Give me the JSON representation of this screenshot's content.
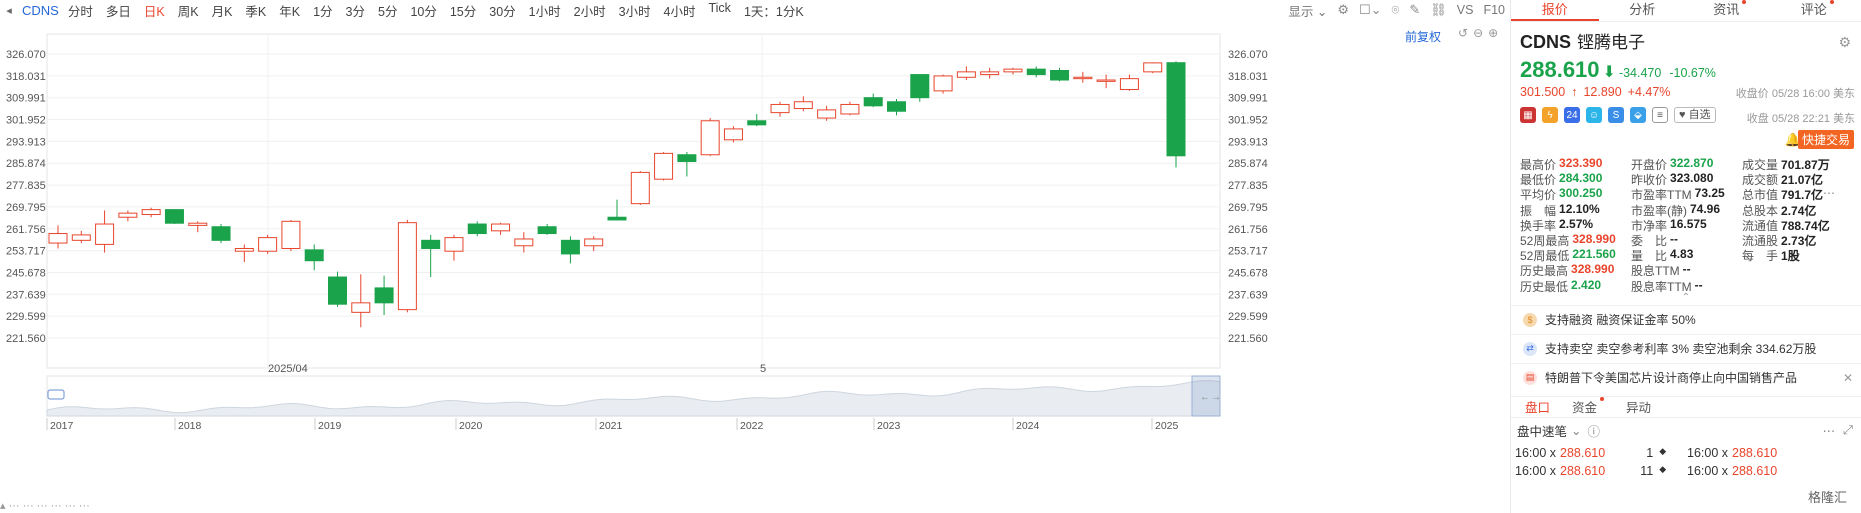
{
  "toolbar": {
    "symbol": "CDNS",
    "periods": [
      "分时",
      "多日",
      "日K",
      "周K",
      "月K",
      "季K",
      "年K",
      "1分",
      "3分",
      "5分",
      "10分",
      "15分",
      "30分",
      "1小时",
      "2小时",
      "3小时",
      "4小时",
      "Tick",
      "1天：1分K"
    ],
    "active_period": "日K",
    "display_label": "显示",
    "vs_label": "VS",
    "f10_label": "F10"
  },
  "chart": {
    "fuquan_label": "前复权",
    "price_ticks": [
      "326.070",
      "318.031",
      "309.991",
      "301.952",
      "293.913",
      "285.874",
      "277.835",
      "269.795",
      "261.756",
      "253.717",
      "245.678",
      "237.639",
      "229.599",
      "221.560"
    ],
    "date_ticks": [
      "2025/04",
      "5"
    ],
    "year_ticks": [
      "2017",
      "2018",
      "2019",
      "2020",
      "2021",
      "2022",
      "2023",
      "2024",
      "2025"
    ],
    "colors": {
      "up": "#e8452c",
      "down": "#1aa34a",
      "grid": "#f0f0f0"
    }
  },
  "chart_data": {
    "type": "candlestick",
    "ylim": [
      221.56,
      326.07
    ],
    "candles": [
      {
        "o": 256.5,
        "h": 263.0,
        "l": 254.5,
        "c": 260.0
      },
      {
        "o": 257.5,
        "h": 261.0,
        "l": 256.5,
        "c": 259.5
      },
      {
        "o": 256.0,
        "h": 268.5,
        "l": 253.0,
        "c": 263.5
      },
      {
        "o": 266.0,
        "h": 268.5,
        "l": 264.5,
        "c": 267.5
      },
      {
        "o": 267.0,
        "h": 269.5,
        "l": 266.0,
        "c": 268.8
      },
      {
        "o": 268.8,
        "h": 269.0,
        "l": 263.5,
        "c": 263.8
      },
      {
        "o": 263.0,
        "h": 264.5,
        "l": 260.5,
        "c": 263.8
      },
      {
        "o": 262.5,
        "h": 263.5,
        "l": 256.5,
        "c": 257.5
      },
      {
        "o": 253.5,
        "h": 256.0,
        "l": 249.5,
        "c": 254.5
      },
      {
        "o": 253.5,
        "h": 259.5,
        "l": 252.5,
        "c": 258.5
      },
      {
        "o": 254.5,
        "h": 265.0,
        "l": 253.5,
        "c": 264.5
      },
      {
        "o": 254.0,
        "h": 256.0,
        "l": 246.5,
        "c": 250.0
      },
      {
        "o": 244.0,
        "h": 246.0,
        "l": 233.0,
        "c": 234.0
      },
      {
        "o": 231.0,
        "h": 245.0,
        "l": 225.5,
        "c": 234.5
      },
      {
        "o": 240.0,
        "h": 244.5,
        "l": 230.0,
        "c": 234.5
      },
      {
        "o": 232.0,
        "h": 265.0,
        "l": 231.0,
        "c": 264.0
      },
      {
        "o": 257.5,
        "h": 259.5,
        "l": 244.0,
        "c": 254.5
      },
      {
        "o": 253.5,
        "h": 259.5,
        "l": 250.0,
        "c": 258.5
      },
      {
        "o": 263.5,
        "h": 264.5,
        "l": 259.0,
        "c": 260.0
      },
      {
        "o": 261.0,
        "h": 264.0,
        "l": 259.5,
        "c": 263.5
      },
      {
        "o": 255.5,
        "h": 260.5,
        "l": 253.0,
        "c": 258.0
      },
      {
        "o": 262.5,
        "h": 263.5,
        "l": 259.5,
        "c": 260.0
      },
      {
        "o": 257.5,
        "h": 259.0,
        "l": 249.0,
        "c": 252.5
      },
      {
        "o": 255.5,
        "h": 259.0,
        "l": 253.5,
        "c": 258.0
      },
      {
        "o": 266.0,
        "h": 272.5,
        "l": 265.0,
        "c": 265.0
      },
      {
        "o": 271.0,
        "h": 283.0,
        "l": 270.5,
        "c": 282.5
      },
      {
        "o": 280.0,
        "h": 290.0,
        "l": 279.5,
        "c": 289.5
      },
      {
        "o": 289.0,
        "h": 290.0,
        "l": 281.0,
        "c": 286.5
      },
      {
        "o": 289.0,
        "h": 302.5,
        "l": 288.5,
        "c": 301.5
      },
      {
        "o": 294.5,
        "h": 299.5,
        "l": 293.5,
        "c": 298.5
      },
      {
        "o": 301.5,
        "h": 304.0,
        "l": 299.5,
        "c": 300.0
      },
      {
        "o": 304.5,
        "h": 308.5,
        "l": 303.0,
        "c": 307.5
      },
      {
        "o": 306.0,
        "h": 310.5,
        "l": 305.0,
        "c": 308.5
      },
      {
        "o": 302.5,
        "h": 307.0,
        "l": 301.5,
        "c": 305.5
      },
      {
        "o": 304.0,
        "h": 308.5,
        "l": 303.5,
        "c": 307.5
      },
      {
        "o": 310.0,
        "h": 311.5,
        "l": 306.5,
        "c": 307.0
      },
      {
        "o": 308.5,
        "h": 309.5,
        "l": 303.5,
        "c": 305.0
      },
      {
        "o": 318.5,
        "h": 318.5,
        "l": 308.5,
        "c": 310.0
      },
      {
        "o": 312.5,
        "h": 318.5,
        "l": 311.5,
        "c": 318.0
      },
      {
        "o": 317.5,
        "h": 321.5,
        "l": 316.5,
        "c": 319.5
      },
      {
        "o": 318.5,
        "h": 321.0,
        "l": 317.0,
        "c": 319.5
      },
      {
        "o": 319.5,
        "h": 321.0,
        "l": 318.5,
        "c": 320.5
      },
      {
        "o": 320.5,
        "h": 321.5,
        "l": 317.5,
        "c": 318.5
      },
      {
        "o": 320.0,
        "h": 321.0,
        "l": 316.0,
        "c": 316.5
      },
      {
        "o": 317.0,
        "h": 319.5,
        "l": 315.5,
        "c": 317.5
      },
      {
        "o": 316.0,
        "h": 318.5,
        "l": 313.5,
        "c": 316.5
      },
      {
        "o": 313.0,
        "h": 318.5,
        "l": 312.5,
        "c": 317.0
      },
      {
        "o": 319.5,
        "h": 323.0,
        "l": 319.0,
        "c": 322.8
      },
      {
        "o": 322.87,
        "h": 323.39,
        "l": 284.3,
        "c": 288.61
      }
    ]
  },
  "overview": {
    "years": [
      "2017",
      "2018",
      "2019",
      "2020",
      "2021",
      "2022",
      "2023",
      "2024",
      "2025"
    ]
  },
  "panel": {
    "tabs": [
      "报价",
      "分析",
      "资讯",
      "评论"
    ],
    "active_tab": "报价",
    "symbol": "CDNS",
    "name": "铿腾电子",
    "price": "288.610",
    "price_arrow": "⬇",
    "change": "-34.470",
    "change_pct": "-10.67%",
    "close_label": "收盘价 05/28 16:00 美东",
    "ah_price": "301.500",
    "ah_arrow": "↑",
    "ah_change": "12.890",
    "ah_pct": "+4.47%",
    "ah_label": "收盘 05/28 22:21 美东",
    "fav_label": "自选",
    "fast_trade": "快捷交易",
    "stats": [
      [
        [
          "最高价",
          "323.390",
          "up"
        ],
        [
          "开盘价",
          "322.870",
          "down"
        ],
        [
          "成交量",
          "701.87万",
          ""
        ]
      ],
      [
        [
          "最低价",
          "284.300",
          "down"
        ],
        [
          "昨收价",
          "323.080",
          ""
        ],
        [
          "成交额",
          "21.07亿",
          ""
        ]
      ],
      [
        [
          "平均价",
          "300.250",
          "down"
        ],
        [
          "市盈率TTM",
          "73.25",
          ""
        ],
        [
          "总市值",
          "791.7亿",
          ""
        ]
      ],
      [
        [
          "振　幅",
          "12.10%",
          ""
        ],
        [
          "市盈率(静)",
          "74.96",
          ""
        ],
        [
          "总股本",
          "2.74亿",
          ""
        ]
      ],
      [
        [
          "换手率",
          "2.57%",
          ""
        ],
        [
          "市净率",
          "16.575",
          ""
        ],
        [
          "流通值",
          "788.74亿",
          ""
        ]
      ],
      [
        [
          "52周最高",
          "328.990",
          "up"
        ],
        [
          "委　比",
          "--",
          ""
        ],
        [
          "流通股",
          "2.73亿",
          ""
        ]
      ],
      [
        [
          "52周最低",
          "221.560",
          "down"
        ],
        [
          "量　比",
          "4.83",
          ""
        ],
        [
          "每　手",
          "1股",
          ""
        ]
      ],
      [
        [
          "历史最高",
          "328.990",
          "up"
        ],
        [
          "股息TTM",
          "--",
          ""
        ],
        [
          "",
          "",
          ""
        ]
      ],
      [
        [
          "历史最低",
          "2.420",
          "down"
        ],
        [
          "股息率TTM",
          "--",
          ""
        ],
        [
          "",
          "",
          ""
        ]
      ]
    ],
    "info_rows": [
      {
        "text": "支持融资 融资保证金率 50%"
      },
      {
        "text": "支持卖空 卖空参考利率 3% 卖空池剩余 334.62万股"
      },
      {
        "text": "特朗普下令美国芯片设计商停止向中国销售产品"
      }
    ],
    "subtabs": [
      "盘口",
      "资金",
      "异动"
    ],
    "active_subtab": "盘口",
    "speed_title": "盘中速笔",
    "trades": [
      {
        "time": "16:00",
        "sep": "x",
        "price": "288.610",
        "qty": "1",
        "dir": "◆",
        "time2": "16:00",
        "price2": "288.610"
      },
      {
        "time": "16:00",
        "sep": "x",
        "price": "288.610",
        "qty": "11",
        "dir": "◆",
        "time2": "16:00",
        "price2": "288.610"
      }
    ]
  },
  "watermark": "格隆汇"
}
